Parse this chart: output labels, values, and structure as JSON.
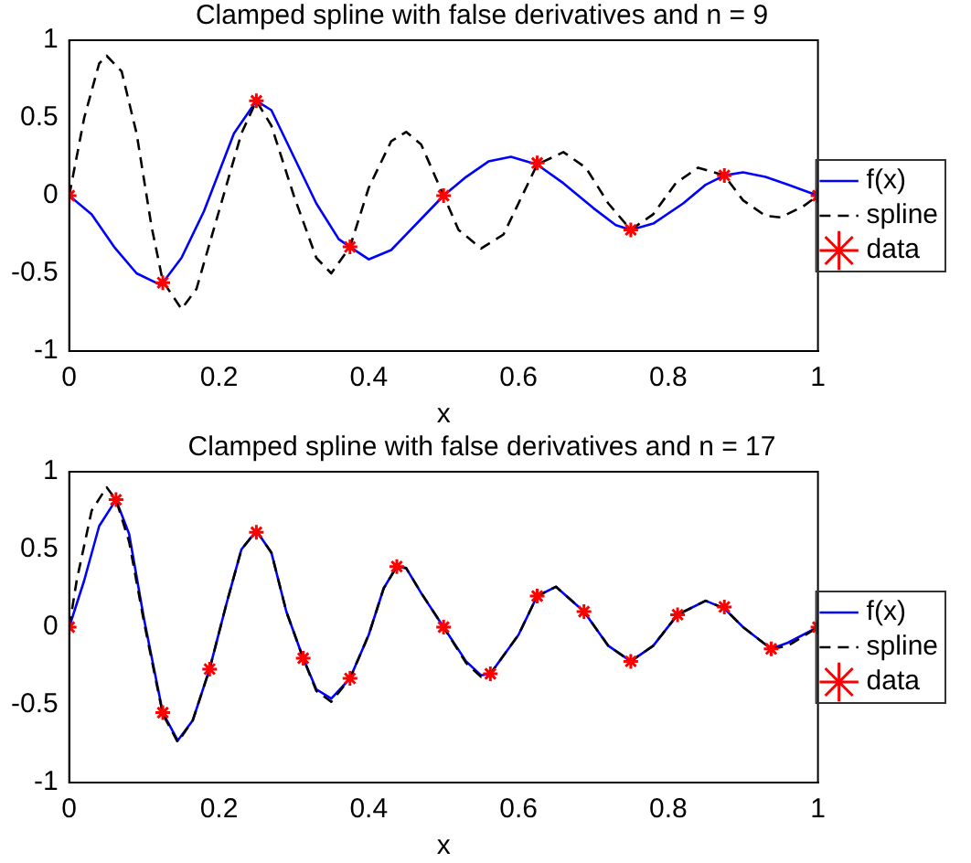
{
  "chart_data": [
    {
      "type": "line",
      "title": "Clamped spline with false derivatives and n = 9",
      "xlabel": "x",
      "xlim": [
        0,
        1
      ],
      "xticks": [
        0,
        0.2,
        0.4,
        0.6,
        0.8,
        1
      ],
      "ylim": [
        -1,
        1
      ],
      "yticks": [
        -1,
        -0.5,
        0,
        0.5,
        1
      ],
      "grid": false,
      "legend": "right",
      "series": [
        {
          "name": "f(x)",
          "color": "#0000ff",
          "line_style": "solid",
          "marker": "none",
          "x": [
            0,
            0.03,
            0.06,
            0.09,
            0.12,
            0.125,
            0.15,
            0.18,
            0.2,
            0.22,
            0.25,
            0.27,
            0.3,
            0.33,
            0.36,
            0.375,
            0.4,
            0.43,
            0.47,
            0.5,
            0.53,
            0.56,
            0.59,
            0.625,
            0.66,
            0.7,
            0.73,
            0.75,
            0.78,
            0.82,
            0.85,
            0.875,
            0.9,
            0.93,
            0.96,
            1
          ],
          "values": [
            0,
            -0.12,
            -0.33,
            -0.5,
            -0.57,
            -0.56,
            -0.4,
            -0.1,
            0.15,
            0.4,
            0.61,
            0.55,
            0.25,
            -0.05,
            -0.28,
            -0.33,
            -0.41,
            -0.35,
            -0.15,
            0,
            0.12,
            0.22,
            0.25,
            0.2,
            0.08,
            -0.08,
            -0.19,
            -0.22,
            -0.18,
            -0.05,
            0.07,
            0.13,
            0.15,
            0.12,
            0.07,
            0
          ]
        },
        {
          "name": "spline",
          "color": "#000000",
          "line_style": "dashed",
          "marker": "none",
          "x": [
            0,
            0.02,
            0.04,
            0.05,
            0.07,
            0.09,
            0.11,
            0.125,
            0.15,
            0.17,
            0.2,
            0.23,
            0.25,
            0.27,
            0.3,
            0.33,
            0.35,
            0.375,
            0.4,
            0.43,
            0.45,
            0.47,
            0.5,
            0.52,
            0.55,
            0.58,
            0.6,
            0.625,
            0.66,
            0.69,
            0.72,
            0.75,
            0.78,
            0.81,
            0.84,
            0.875,
            0.9,
            0.93,
            0.95,
            0.98,
            1
          ],
          "values": [
            0,
            0.5,
            0.85,
            0.9,
            0.8,
            0.4,
            -0.2,
            -0.55,
            -0.73,
            -0.6,
            -0.1,
            0.4,
            0.61,
            0.45,
            0,
            -0.4,
            -0.5,
            -0.33,
            0.05,
            0.35,
            0.41,
            0.33,
            0,
            -0.22,
            -0.34,
            -0.25,
            -0.05,
            0.2,
            0.28,
            0.18,
            -0.05,
            -0.22,
            -0.12,
            0.08,
            0.18,
            0.13,
            -0.03,
            -0.13,
            -0.14,
            -0.07,
            0
          ]
        },
        {
          "name": "data",
          "type": "scatter",
          "color": "#ff0000",
          "marker": "cross",
          "x": [
            0,
            0.125,
            0.25,
            0.375,
            0.5,
            0.625,
            0.75,
            0.875,
            1
          ],
          "values": [
            0,
            -0.56,
            0.61,
            -0.33,
            0,
            0.21,
            -0.22,
            0.13,
            0
          ]
        }
      ]
    },
    {
      "type": "line",
      "title": "Clamped spline with false derivatives and n = 17",
      "xlabel": "x",
      "xlim": [
        0,
        1
      ],
      "xticks": [
        0,
        0.2,
        0.4,
        0.6,
        0.8,
        1
      ],
      "ylim": [
        -1,
        1
      ],
      "yticks": [
        -1,
        -0.5,
        0,
        0.5,
        1
      ],
      "grid": false,
      "legend": "right",
      "series": [
        {
          "name": "f(x)",
          "color": "#0000ff",
          "line_style": "solid",
          "marker": "none",
          "x": [
            0,
            0.02,
            0.04,
            0.0625,
            0.08,
            0.1,
            0.125,
            0.145,
            0.165,
            0.1875,
            0.21,
            0.23,
            0.25,
            0.27,
            0.29,
            0.3125,
            0.33,
            0.35,
            0.375,
            0.4,
            0.42,
            0.4375,
            0.45,
            0.47,
            0.5,
            0.53,
            0.55,
            0.5625,
            0.6,
            0.625,
            0.65,
            0.6875,
            0.72,
            0.75,
            0.78,
            0.8125,
            0.85,
            0.875,
            0.9,
            0.9375,
            0.96,
            1
          ],
          "values": [
            0,
            0.3,
            0.65,
            0.82,
            0.6,
            0.05,
            -0.55,
            -0.73,
            -0.6,
            -0.27,
            0.15,
            0.5,
            0.62,
            0.48,
            0.1,
            -0.2,
            -0.4,
            -0.46,
            -0.33,
            -0.05,
            0.25,
            0.39,
            0.38,
            0.22,
            0,
            -0.22,
            -0.31,
            -0.3,
            -0.05,
            0.2,
            0.26,
            0.1,
            -0.12,
            -0.22,
            -0.12,
            0.08,
            0.17,
            0.12,
            0,
            -0.14,
            -0.1,
            0
          ]
        },
        {
          "name": "spline",
          "color": "#000000",
          "line_style": "dashed",
          "marker": "none",
          "x": [
            0,
            0.01,
            0.03,
            0.05,
            0.0625,
            0.08,
            0.1,
            0.125,
            0.145,
            0.165,
            0.1875,
            0.21,
            0.23,
            0.25,
            0.27,
            0.29,
            0.3125,
            0.33,
            0.35,
            0.375,
            0.4,
            0.42,
            0.4375,
            0.45,
            0.47,
            0.5,
            0.53,
            0.55,
            0.5625,
            0.6,
            0.625,
            0.65,
            0.6875,
            0.72,
            0.75,
            0.78,
            0.8125,
            0.85,
            0.875,
            0.9,
            0.9375,
            0.96,
            1
          ],
          "values": [
            0,
            0.3,
            0.75,
            0.9,
            0.82,
            0.55,
            0.03,
            -0.56,
            -0.74,
            -0.6,
            -0.27,
            0.15,
            0.5,
            0.62,
            0.48,
            0.1,
            -0.2,
            -0.41,
            -0.48,
            -0.33,
            -0.05,
            0.25,
            0.39,
            0.38,
            0.22,
            0,
            -0.23,
            -0.32,
            -0.3,
            -0.05,
            0.2,
            0.26,
            0.1,
            -0.12,
            -0.22,
            -0.12,
            0.08,
            0.17,
            0.12,
            0,
            -0.14,
            -0.12,
            0
          ]
        },
        {
          "name": "data",
          "type": "scatter",
          "color": "#ff0000",
          "marker": "cross",
          "x": [
            0,
            0.0625,
            0.125,
            0.1875,
            0.25,
            0.3125,
            0.375,
            0.4375,
            0.5,
            0.5625,
            0.625,
            0.6875,
            0.75,
            0.8125,
            0.875,
            0.9375,
            1
          ],
          "values": [
            0,
            0.82,
            -0.55,
            -0.27,
            0.61,
            -0.2,
            -0.33,
            0.39,
            0,
            -0.3,
            0.2,
            0.1,
            -0.22,
            0.08,
            0.13,
            -0.14,
            0
          ]
        }
      ]
    }
  ]
}
